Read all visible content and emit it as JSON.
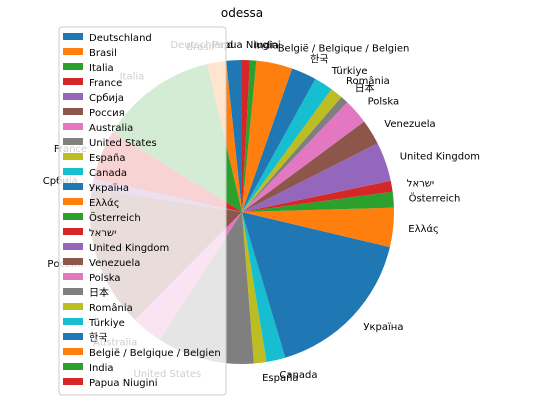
{
  "chart_data": {
    "type": "pie",
    "title": "odessa",
    "legend_position": "upper-left",
    "legend_overlaps_chart": true,
    "start_angle_deg": 90,
    "direction": "clockwise",
    "slices": [
      {
        "label": "Deutschland",
        "value": 1.0,
        "color": "#1f77b4"
      },
      {
        "label": "Brasil",
        "value": 1.2,
        "color": "#ff7f0e"
      },
      {
        "label": "Italia",
        "value": 7.5,
        "color": "#2ca02c"
      },
      {
        "label": "France",
        "value": 3.2,
        "color": "#d62728"
      },
      {
        "label": "Србија",
        "value": 0.6,
        "color": "#9467bd"
      },
      {
        "label": "Россия",
        "value": 9.0,
        "color": "#8c564b"
      },
      {
        "label": "Australia",
        "value": 2.0,
        "color": "#e377c2"
      },
      {
        "label": "United States",
        "value": 6.2,
        "color": "#7f7f7f"
      },
      {
        "label": "España",
        "value": 0.8,
        "color": "#bcbd22"
      },
      {
        "label": "Canada",
        "value": 1.2,
        "color": "#17becf"
      },
      {
        "label": "Україна",
        "value": 10.0,
        "color": "#1f77b4"
      },
      {
        "label": "Ελλάς",
        "value": 2.5,
        "color": "#ff7f0e"
      },
      {
        "label": "Österreich",
        "value": 1.0,
        "color": "#2ca02c"
      },
      {
        "label": "ישראל",
        "value": 0.7,
        "color": "#d62728"
      },
      {
        "label": "United Kingdom",
        "value": 2.5,
        "color": "#9467bd"
      },
      {
        "label": "Venezuela",
        "value": 1.6,
        "color": "#8c564b"
      },
      {
        "label": "Polska",
        "value": 1.6,
        "color": "#e377c2"
      },
      {
        "label": "日本",
        "value": 0.5,
        "color": "#7f7f7f"
      },
      {
        "label": "România",
        "value": 0.8,
        "color": "#bcbd22"
      },
      {
        "label": "Türkiye",
        "value": 1.2,
        "color": "#17becf"
      },
      {
        "label": "한국",
        "value": 1.6,
        "color": "#1f77b4"
      },
      {
        "label": "België / Belgique / Belgien",
        "value": 2.3,
        "color": "#ff7f0e"
      },
      {
        "label": "India",
        "value": 0.4,
        "color": "#2ca02c"
      },
      {
        "label": "Papua Niugini",
        "value": 0.5,
        "color": "#d62728"
      }
    ]
  }
}
